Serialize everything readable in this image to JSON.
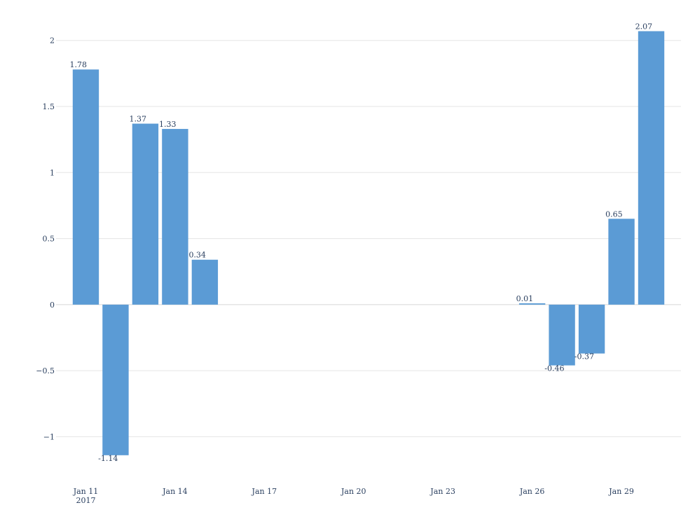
{
  "chart_data": {
    "type": "bar",
    "title": "",
    "xlabel": "",
    "ylabel": "",
    "x": [
      "2017-01-11",
      "2017-01-12",
      "2017-01-13",
      "2017-01-14",
      "2017-01-15",
      "2017-01-26",
      "2017-01-27",
      "2017-01-28",
      "2017-01-29",
      "2017-01-30"
    ],
    "values": [
      1.78,
      -1.14,
      1.37,
      1.33,
      0.34,
      0.01,
      -0.46,
      -0.37,
      0.65,
      2.07
    ],
    "value_labels": [
      "1.78",
      "-1.14",
      "1.37",
      "1.33",
      "0.34",
      "0.01",
      "-0.46",
      "-0.37",
      "0.65",
      "2.07"
    ],
    "xlim": [
      "2017-01-10",
      "2017-01-31"
    ],
    "ylim": [
      -1.3,
      2.2
    ],
    "x_ticks": [
      {
        "date": "2017-01-11",
        "label": "Jan 11",
        "sublabel": "2017"
      },
      {
        "date": "2017-01-14",
        "label": "Jan 14",
        "sublabel": ""
      },
      {
        "date": "2017-01-17",
        "label": "Jan 17",
        "sublabel": ""
      },
      {
        "date": "2017-01-20",
        "label": "Jan 20",
        "sublabel": ""
      },
      {
        "date": "2017-01-23",
        "label": "Jan 23",
        "sublabel": ""
      },
      {
        "date": "2017-01-26",
        "label": "Jan 26",
        "sublabel": ""
      },
      {
        "date": "2017-01-29",
        "label": "Jan 29",
        "sublabel": ""
      }
    ],
    "y_ticks": [
      {
        "value": -1,
        "label": "−1"
      },
      {
        "value": -0.5,
        "label": "−0.5"
      },
      {
        "value": 0,
        "label": "0"
      },
      {
        "value": 0.5,
        "label": "0.5"
      },
      {
        "value": 1,
        "label": "1"
      },
      {
        "value": 1.5,
        "label": "1.5"
      },
      {
        "value": 2,
        "label": "2"
      }
    ],
    "grid": true,
    "bar_color": "#5b9bd5"
  }
}
